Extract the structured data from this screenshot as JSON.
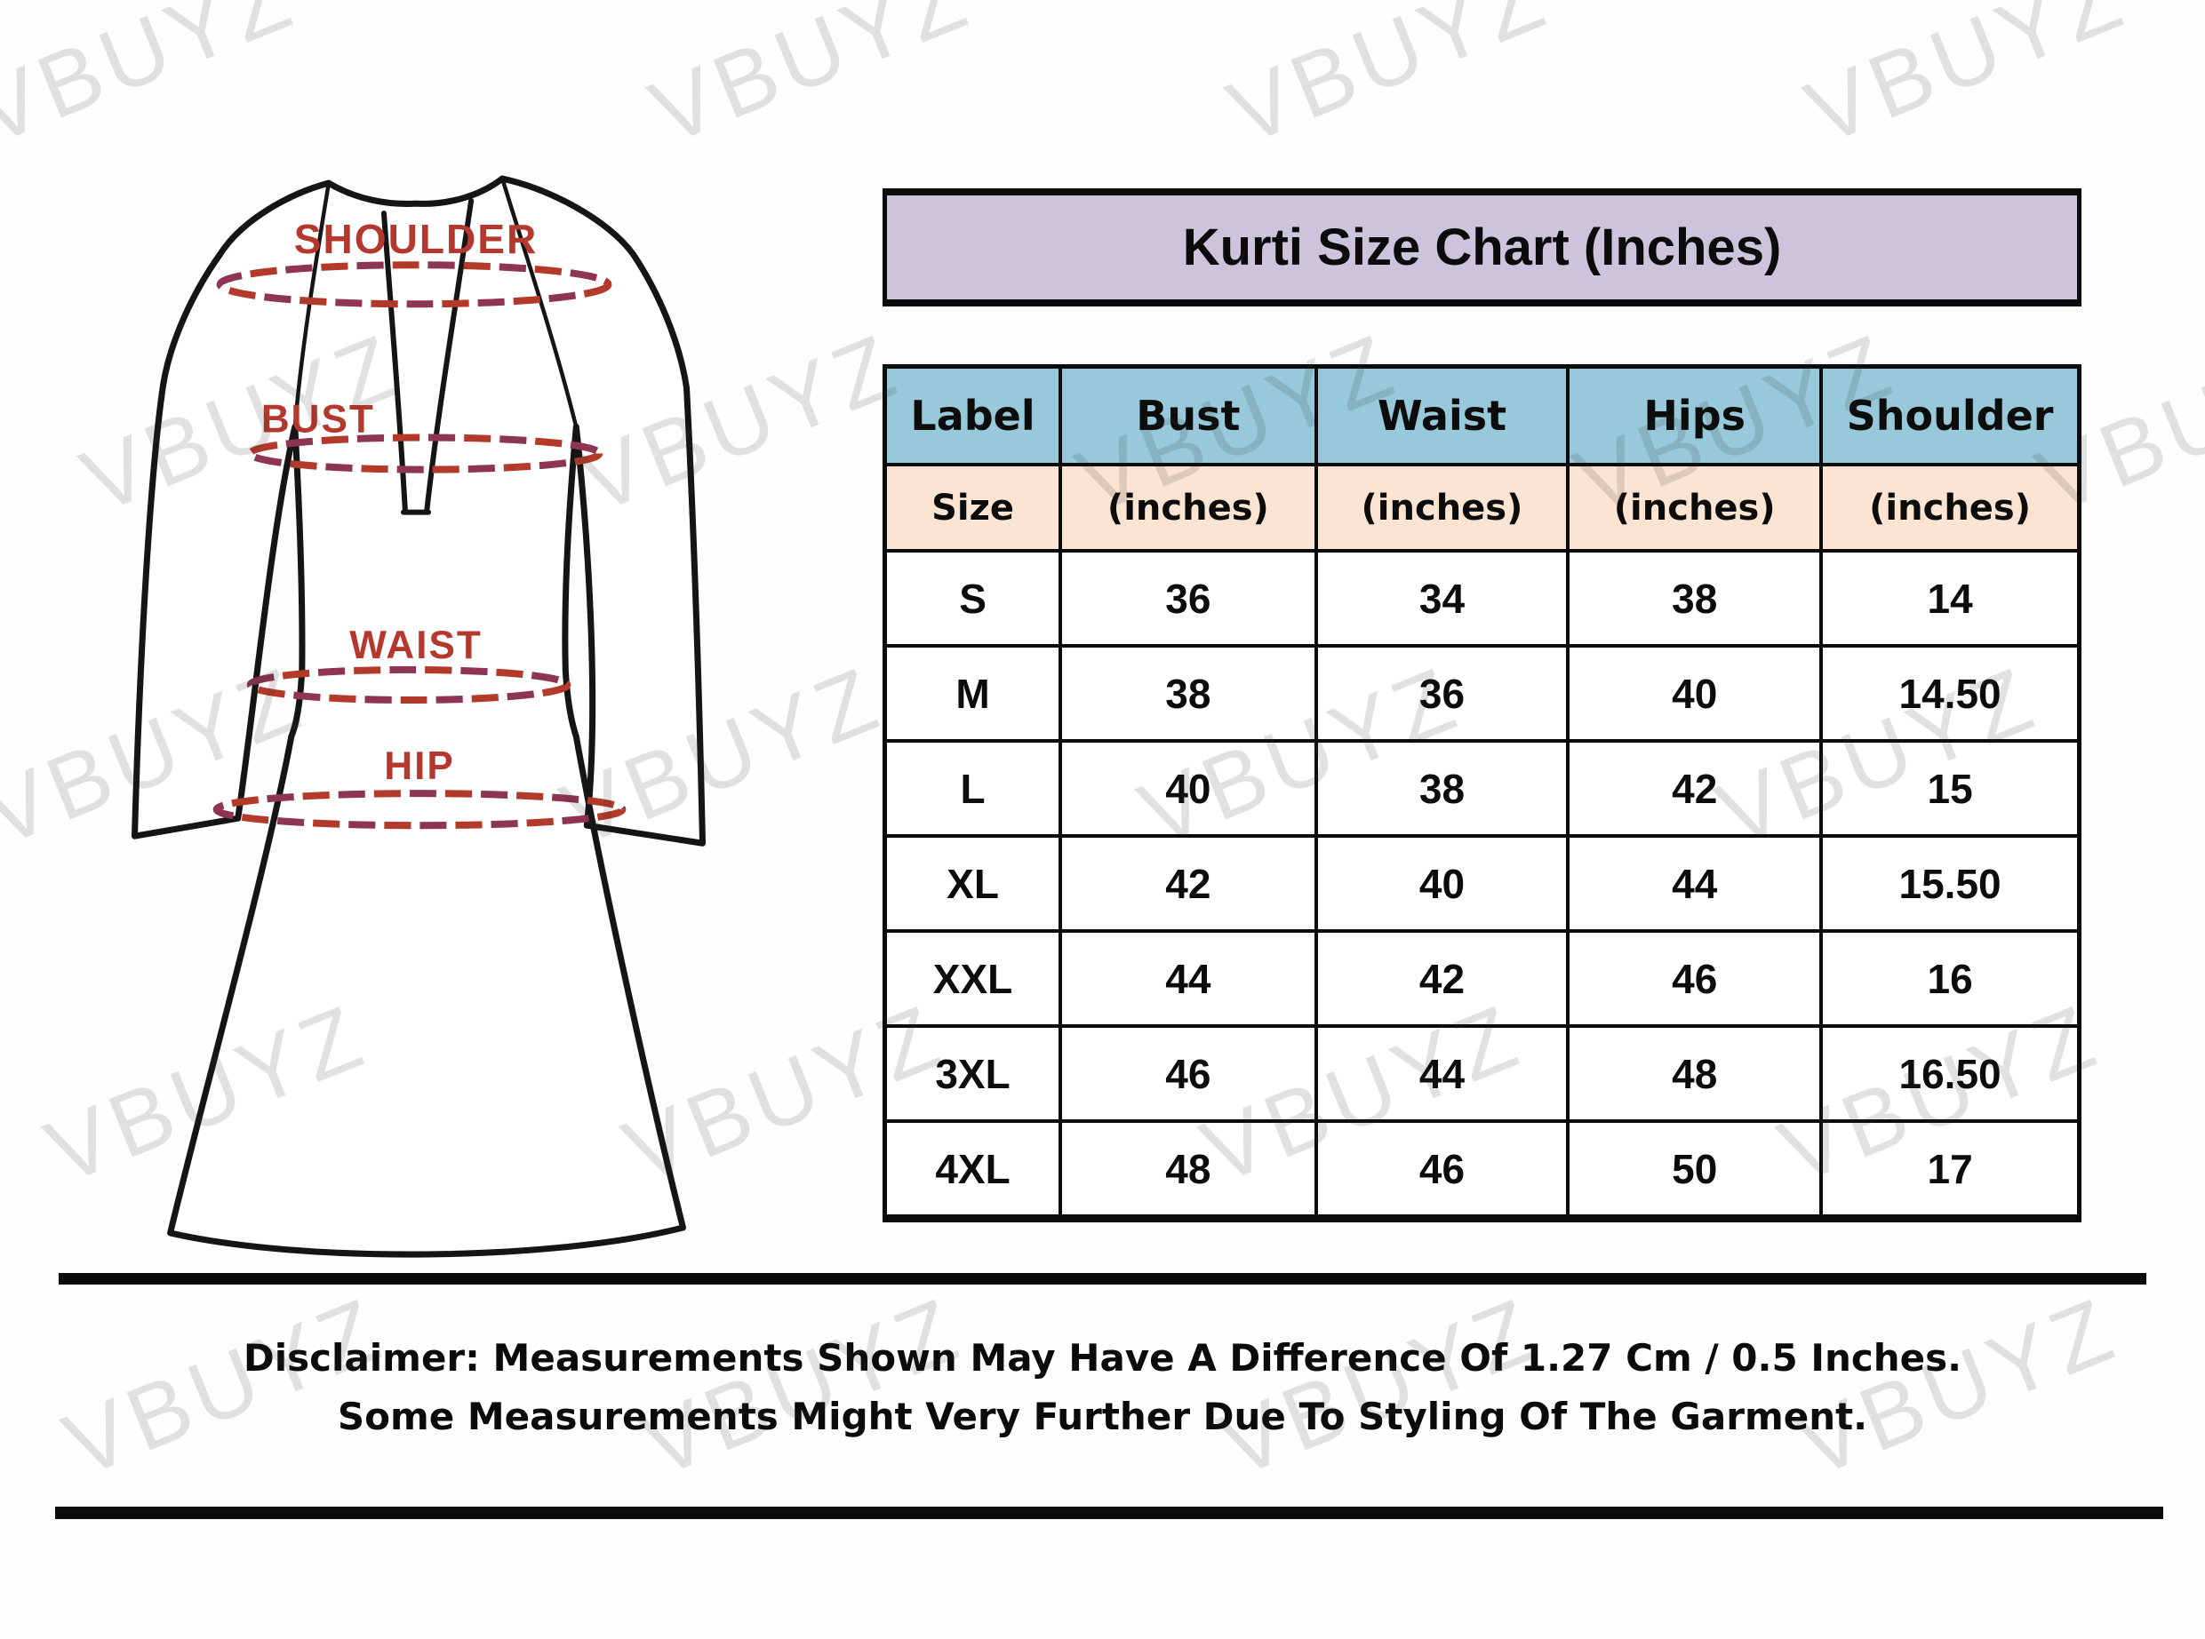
{
  "watermark": {
    "text": "VBUYZ"
  },
  "header": {
    "title": "Kurti Size Chart (Inches)"
  },
  "diagram": {
    "shoulder_label": "SHOULDER",
    "bust_label": "BUST",
    "waist_label": "WAIST",
    "hip_label": "HIP"
  },
  "table": {
    "header_row": {
      "label": "Label",
      "bust": "Bust",
      "waist": "Waist",
      "hips": "Hips",
      "shoulder": "Shoulder"
    },
    "subheader_row": {
      "label": "Size",
      "bust": "(inches)",
      "waist": "(inches)",
      "hips": "(inches)",
      "shoulder": "(inches)"
    },
    "rows": [
      [
        "S",
        "36",
        "34",
        "38",
        "14"
      ],
      [
        "M",
        "38",
        "36",
        "40",
        "14.50"
      ],
      [
        "L",
        "40",
        "38",
        "42",
        "15"
      ],
      [
        "XL",
        "42",
        "40",
        "44",
        "15.50"
      ],
      [
        "XXL",
        "44",
        "42",
        "46",
        "16"
      ],
      [
        "3XL",
        "46",
        "44",
        "48",
        "16.50"
      ],
      [
        "4XL",
        "48",
        "46",
        "50",
        "17"
      ]
    ]
  },
  "chart_data": {
    "type": "table",
    "title": "Kurti Size Chart (Inches)",
    "columns": [
      "Label / Size",
      "Bust (inches)",
      "Waist (inches)",
      "Hips (inches)",
      "Shoulder (inches)"
    ],
    "rows": [
      {
        "size": "S",
        "bust": 36,
        "waist": 34,
        "hips": 38,
        "shoulder": 14
      },
      {
        "size": "M",
        "bust": 38,
        "waist": 36,
        "hips": 40,
        "shoulder": 14.5
      },
      {
        "size": "L",
        "bust": 40,
        "waist": 38,
        "hips": 42,
        "shoulder": 15
      },
      {
        "size": "XL",
        "bust": 42,
        "waist": 40,
        "hips": 44,
        "shoulder": 15.5
      },
      {
        "size": "XXL",
        "bust": 44,
        "waist": 42,
        "hips": 46,
        "shoulder": 16
      },
      {
        "size": "3XL",
        "bust": 46,
        "waist": 44,
        "hips": 48,
        "shoulder": 16.5
      },
      {
        "size": "4XL",
        "bust": 48,
        "waist": 46,
        "hips": 50,
        "shoulder": 17
      }
    ]
  },
  "disclaimer": {
    "line1": "Disclaimer: Measurements Shown May Have A Difference Of 1.27 Cm / 0.5 Inches.",
    "line2": "Some Measurements Might Very Further Due To Styling Of The Garment."
  },
  "colors": {
    "title_bg": "#ccc4dd",
    "header_bg": "#97c9da",
    "subheader_bg": "#fbe4d1",
    "accent_red": "#b5382e",
    "dash_red": "#b33a2b",
    "dash_maroon": "#8e3454",
    "border_black": "#0b0b0b",
    "watermark_gray": "#d8d8d8"
  }
}
